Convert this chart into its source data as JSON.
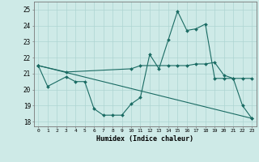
{
  "title": "",
  "xlabel": "Humidex (Indice chaleur)",
  "bg_color": "#ceeae7",
  "grid_color": "#add5d2",
  "line_color": "#1a6b63",
  "xlim": [
    -0.5,
    23.5
  ],
  "ylim": [
    17.7,
    25.5
  ],
  "yticks": [
    18,
    19,
    20,
    21,
    22,
    23,
    24,
    25
  ],
  "xticks": [
    0,
    1,
    2,
    3,
    4,
    5,
    6,
    7,
    8,
    9,
    10,
    11,
    12,
    13,
    14,
    15,
    16,
    17,
    18,
    19,
    20,
    21,
    22,
    23
  ],
  "series": [
    {
      "x": [
        0,
        1,
        3,
        4,
        5,
        6,
        7,
        8,
        9,
        10,
        11,
        12,
        13,
        14,
        15,
        16,
        17,
        18,
        19,
        20,
        21,
        22,
        23
      ],
      "y": [
        21.5,
        20.2,
        20.8,
        20.5,
        20.5,
        18.8,
        18.4,
        18.4,
        18.4,
        19.1,
        19.5,
        22.2,
        21.3,
        23.1,
        24.9,
        23.7,
        23.8,
        24.1,
        20.7,
        20.7,
        20.7,
        19.0,
        18.2
      ]
    },
    {
      "x": [
        0,
        3,
        10,
        11,
        14,
        15,
        16,
        17,
        18,
        19,
        20,
        21,
        22,
        23
      ],
      "y": [
        21.5,
        21.1,
        21.3,
        21.5,
        21.5,
        21.5,
        21.5,
        21.6,
        21.6,
        21.7,
        20.9,
        20.7,
        20.7,
        20.7
      ]
    },
    {
      "x": [
        0,
        23
      ],
      "y": [
        21.5,
        18.2
      ]
    }
  ]
}
